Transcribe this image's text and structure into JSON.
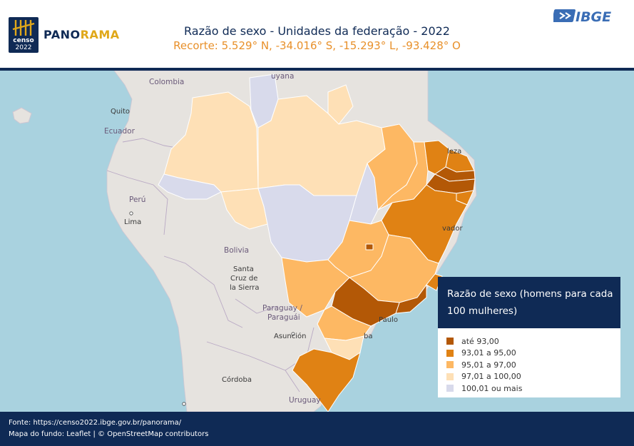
{
  "header": {
    "censo_logo_text": "censo",
    "censo_logo_year": "2022",
    "panorama_part1": "PANO",
    "panorama_part2": "RAMA",
    "title": "Razão de sexo - Unidades da federação - 2022",
    "subtitle": "Recorte: 5.529° N, -34.016° S, -15.293° L, -93.428° O",
    "ibge_logo_text": "IBGE"
  },
  "map": {
    "place_labels": {
      "colombia": "Colombia",
      "quito": "Quito",
      "ecuador": "Ecuador",
      "peru": "Perú",
      "lima": "Lima",
      "bolivia": "Bolivia",
      "santa_cruz_1": "Santa",
      "santa_cruz_2": "Cruz de",
      "santa_cruz_3": "la Sierra",
      "paraguay_1": "Paraguay /",
      "paraguay_2": "Paraguái",
      "asuncion": "Asunción",
      "cordoba": "Córdoba",
      "uruguay": "Uruguay",
      "guyana": "uyana",
      "fortaleza": "leza",
      "salvador": "vador",
      "sao_paulo": "Paulo",
      "curitiba": "ba"
    },
    "colors": {
      "ate_93": "#b35806",
      "93_95": "#e08214",
      "95_97": "#fdb863",
      "97_100": "#fee0b6",
      "100_mais": "#d8daeb",
      "ocean": "#a9d2df",
      "land": "#e6e3df"
    }
  },
  "legend": {
    "title": "Razão de sexo (homens para cada 100 mulheres)",
    "items": [
      {
        "label": "até 93,00",
        "color": "#b35806"
      },
      {
        "label": "93,01 a 95,00",
        "color": "#e08214"
      },
      {
        "label": "95,01 a 97,00",
        "color": "#fdb863"
      },
      {
        "label": "97,01 a 100,00",
        "color": "#fee0b6"
      },
      {
        "label": "100,01 ou mais",
        "color": "#d8daeb"
      }
    ]
  },
  "footer": {
    "source": "Fonte: https://censo2022.ibge.gov.br/panorama/",
    "basemap": "Mapa do fundo: Leaflet | © OpenStreetMap contributors"
  }
}
